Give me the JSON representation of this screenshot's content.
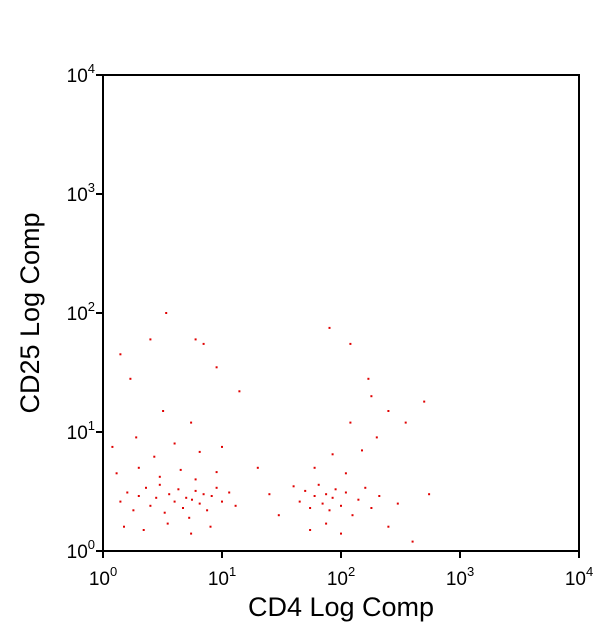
{
  "chart_data": {
    "type": "scatter",
    "title": "",
    "xlabel": "CD4 Log Comp",
    "ylabel": "CD25 Log Comp",
    "x_scale": "log",
    "y_scale": "log",
    "xlim": [
      1,
      10000
    ],
    "ylim": [
      1,
      10000
    ],
    "grid": false,
    "x_ticks": [
      {
        "base": "10",
        "exp": "0"
      },
      {
        "base": "10",
        "exp": "1"
      },
      {
        "base": "10",
        "exp": "2"
      },
      {
        "base": "10",
        "exp": "3"
      },
      {
        "base": "10",
        "exp": "4"
      }
    ],
    "y_ticks": [
      {
        "base": "10",
        "exp": "0"
      },
      {
        "base": "10",
        "exp": "1"
      },
      {
        "base": "10",
        "exp": "2"
      },
      {
        "base": "10",
        "exp": "3"
      },
      {
        "base": "10",
        "exp": "4"
      }
    ],
    "point_color": "#e00000",
    "series": [
      {
        "points": [
          [
            1.4,
            2.6
          ],
          [
            1.6,
            3.1
          ],
          [
            1.8,
            2.2
          ],
          [
            2.0,
            2.9
          ],
          [
            2.3,
            3.4
          ],
          [
            2.5,
            2.4
          ],
          [
            2.8,
            2.8
          ],
          [
            3.0,
            3.6
          ],
          [
            3.3,
            2.1
          ],
          [
            3.6,
            3.0
          ],
          [
            4.0,
            2.6
          ],
          [
            4.3,
            3.3
          ],
          [
            4.7,
            2.3
          ],
          [
            5.0,
            2.8
          ],
          [
            5.3,
            1.9
          ],
          [
            5.6,
            2.7
          ],
          [
            6.0,
            3.2
          ],
          [
            6.5,
            2.5
          ],
          [
            7.0,
            3.0
          ],
          [
            7.5,
            2.2
          ],
          [
            8.2,
            2.9
          ],
          [
            9.0,
            3.4
          ],
          [
            10.0,
            2.6
          ],
          [
            11.5,
            3.1
          ],
          [
            13.0,
            2.4
          ],
          [
            1.5,
            1.6
          ],
          [
            2.2,
            1.5
          ],
          [
            3.5,
            1.7
          ],
          [
            5.5,
            1.4
          ],
          [
            8.0,
            1.6
          ],
          [
            1.3,
            4.5
          ],
          [
            2.0,
            5.0
          ],
          [
            3.0,
            4.2
          ],
          [
            4.5,
            4.8
          ],
          [
            6.0,
            4.0
          ],
          [
            9.0,
            4.6
          ],
          [
            1.2,
            7.5
          ],
          [
            1.9,
            9.0
          ],
          [
            2.7,
            6.2
          ],
          [
            4.0,
            8.0
          ],
          [
            6.5,
            6.8
          ],
          [
            10.0,
            7.5
          ],
          [
            3.2,
            15.0
          ],
          [
            5.5,
            12.0
          ],
          [
            1.4,
            45.0
          ],
          [
            2.5,
            60.0
          ],
          [
            3.4,
            100.0
          ],
          [
            6.0,
            60.0
          ],
          [
            7.0,
            55.0
          ],
          [
            1.7,
            28.0
          ],
          [
            9.0,
            35.0
          ],
          [
            14.0,
            22.0
          ],
          [
            20.0,
            5.0
          ],
          [
            25.0,
            3.0
          ],
          [
            30.0,
            2.0
          ],
          [
            40.0,
            3.5
          ],
          [
            45.0,
            2.6
          ],
          [
            50.0,
            3.2
          ],
          [
            55.0,
            2.3
          ],
          [
            60.0,
            2.9
          ],
          [
            65.0,
            3.6
          ],
          [
            70.0,
            2.5
          ],
          [
            75.0,
            3.0
          ],
          [
            80.0,
            2.2
          ],
          [
            85.0,
            2.8
          ],
          [
            90.0,
            3.3
          ],
          [
            100.0,
            2.4
          ],
          [
            110.0,
            3.1
          ],
          [
            125.0,
            2.0
          ],
          [
            140.0,
            2.7
          ],
          [
            160.0,
            3.4
          ],
          [
            180.0,
            2.3
          ],
          [
            210.0,
            2.9
          ],
          [
            250.0,
            1.6
          ],
          [
            300.0,
            2.5
          ],
          [
            400.0,
            1.2
          ],
          [
            55.0,
            1.5
          ],
          [
            75.0,
            1.7
          ],
          [
            100.0,
            1.4
          ],
          [
            60.0,
            5.0
          ],
          [
            85.0,
            6.5
          ],
          [
            110.0,
            4.5
          ],
          [
            150.0,
            7.0
          ],
          [
            200.0,
            9.0
          ],
          [
            120.0,
            12.0
          ],
          [
            180.0,
            20.0
          ],
          [
            250.0,
            15.0
          ],
          [
            350.0,
            12.0
          ],
          [
            500.0,
            18.0
          ],
          [
            80.0,
            75.0
          ],
          [
            120.0,
            55.0
          ],
          [
            170.0,
            28.0
          ],
          [
            550.0,
            3.0
          ]
        ]
      }
    ]
  }
}
